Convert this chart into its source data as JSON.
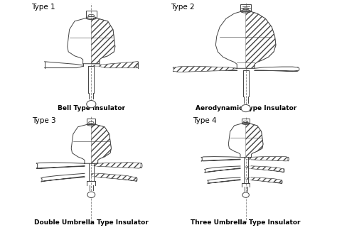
{
  "title": "",
  "background_color": "#ffffff",
  "line_color": "#444444",
  "type_labels": [
    "Type 1",
    "Type 2",
    "Type 3",
    "Type 4"
  ],
  "caption_labels": [
    "Bell Type Insulator",
    "Aerodynamic Type Insulator",
    "Double Umbrella Type Insulator",
    "Three Umbrella Type Insulator"
  ],
  "figsize": [
    4.74,
    3.24
  ],
  "dpi": 100
}
